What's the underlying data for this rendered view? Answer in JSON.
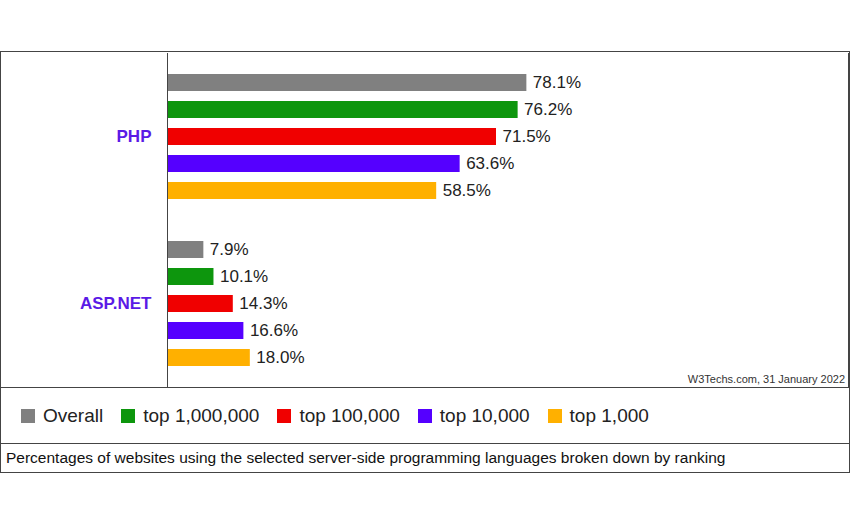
{
  "chart_data": {
    "type": "bar",
    "orientation": "horizontal",
    "caption": "Percentages of websites using the selected server-side programming languages broken down by ranking",
    "annotations": [
      "W3Techs.com, 31 January 2022"
    ],
    "categories": [
      "PHP",
      "ASP.NET"
    ],
    "series": [
      {
        "name": "Overall",
        "color": "#808080",
        "values": [
          78.1,
          7.9
        ],
        "value_labels": [
          "78.1%",
          "7.9%"
        ]
      },
      {
        "name": "top 1,000,000",
        "color": "#0d960d",
        "values": [
          76.2,
          10.1
        ],
        "value_labels": [
          "76.2%",
          "10.1%"
        ]
      },
      {
        "name": "top 100,000",
        "color": "#f00000",
        "values": [
          71.5,
          14.3
        ],
        "value_labels": [
          "71.5%",
          "14.3%"
        ]
      },
      {
        "name": "top 10,000",
        "color": "#5500ff",
        "values": [
          63.6,
          16.6
        ],
        "value_labels": [
          "63.6%",
          "16.6%"
        ]
      },
      {
        "name": "top 1,000",
        "color": "#ffb000",
        "values": [
          58.5,
          18.0
        ],
        "value_labels": [
          "58.5%",
          "18.0%"
        ]
      }
    ],
    "xlim": [
      0,
      148
    ],
    "grid": false,
    "tick_labels": false,
    "data_labels": true,
    "legend": "bottom"
  }
}
